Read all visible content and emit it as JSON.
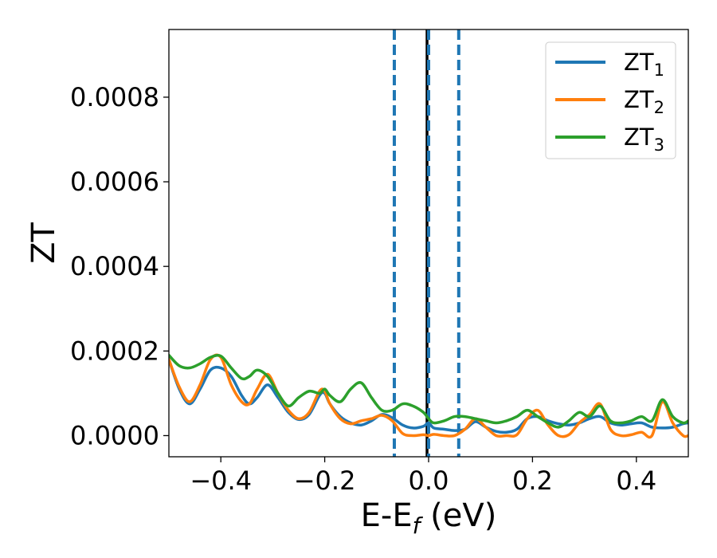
{
  "chart_data": {
    "type": "line",
    "xlabel": "E-E",
    "xlabel_sub": "f",
    "xlabel_unit": " (eV)",
    "ylabel": "ZT",
    "xlim": [
      -0.5,
      0.5
    ],
    "ylim": [
      -5e-05,
      0.00096
    ],
    "xticks": [
      -0.4,
      -0.2,
      0.0,
      0.2,
      0.4
    ],
    "xtick_labels": [
      "−0.4",
      "−0.2",
      "0.0",
      "0.2",
      "0.4"
    ],
    "yticks": [
      0.0,
      0.0002,
      0.0004,
      0.0006,
      0.0008
    ],
    "ytick_labels": [
      "0.0000",
      "0.0002",
      "0.0004",
      "0.0006",
      "0.0008"
    ],
    "grid": false,
    "legend_position": "top-right",
    "vlines": [
      {
        "x": -0.066,
        "style": "dashed",
        "color": "#1f77b4"
      },
      {
        "x": -0.003,
        "style": "solid",
        "color": "#000000"
      },
      {
        "x": 0.0,
        "style": "dashed",
        "color": "#1f77b4"
      },
      {
        "x": 0.058,
        "style": "dashed",
        "color": "#1f77b4"
      }
    ],
    "series": [
      {
        "name": "ZT",
        "sub": "1",
        "color": "#1f77b4",
        "x": [
          -0.5,
          -0.48,
          -0.46,
          -0.44,
          -0.42,
          -0.4,
          -0.38,
          -0.36,
          -0.345,
          -0.33,
          -0.31,
          -0.29,
          -0.27,
          -0.25,
          -0.23,
          -0.21,
          -0.2,
          -0.19,
          -0.17,
          -0.15,
          -0.13,
          -0.11,
          -0.09,
          -0.07,
          -0.05,
          -0.03,
          -0.01,
          0.0,
          0.01,
          0.03,
          0.05,
          0.07,
          0.09,
          0.11,
          0.13,
          0.15,
          0.17,
          0.19,
          0.21,
          0.23,
          0.25,
          0.27,
          0.29,
          0.31,
          0.33,
          0.35,
          0.37,
          0.39,
          0.41,
          0.43,
          0.45,
          0.47,
          0.49,
          0.5
        ],
        "y": [
          0.00018,
          0.00011,
          7.5e-05,
          0.00011,
          0.000155,
          0.00016,
          0.00014,
          9.5e-05,
          7.5e-05,
          9e-05,
          0.00012,
          9e-05,
          5.5e-05,
          3.8e-05,
          5e-05,
          9.5e-05,
          0.0001,
          7.5e-05,
          4.5e-05,
          3e-05,
          2.5e-05,
          3.5e-05,
          5e-05,
          4.2e-05,
          2.5e-05,
          1.8e-05,
          2.2e-05,
          3e-05,
          1.8e-05,
          1.5e-05,
          1.2e-05,
          1.5e-05,
          3.3e-05,
          2e-05,
          1e-05,
          8e-06,
          1.5e-05,
          4e-05,
          4.5e-05,
          3.5e-05,
          2.8e-05,
          2.5e-05,
          3e-05,
          4e-05,
          4.5e-05,
          3e-05,
          2.5e-05,
          2.8e-05,
          3e-05,
          2e-05,
          1.8e-05,
          2e-05,
          2.8e-05,
          3e-05
        ]
      },
      {
        "name": "ZT",
        "sub": "2",
        "color": "#ff7f0e",
        "x": [
          -0.5,
          -0.48,
          -0.46,
          -0.44,
          -0.42,
          -0.4,
          -0.38,
          -0.36,
          -0.345,
          -0.33,
          -0.31,
          -0.29,
          -0.27,
          -0.25,
          -0.23,
          -0.21,
          -0.2,
          -0.19,
          -0.17,
          -0.15,
          -0.13,
          -0.11,
          -0.09,
          -0.07,
          -0.05,
          -0.03,
          -0.01,
          0.0,
          0.01,
          0.03,
          0.05,
          0.07,
          0.09,
          0.11,
          0.13,
          0.15,
          0.17,
          0.19,
          0.21,
          0.23,
          0.25,
          0.27,
          0.29,
          0.31,
          0.33,
          0.35,
          0.37,
          0.39,
          0.41,
          0.43,
          0.45,
          0.47,
          0.49,
          0.5
        ],
        "y": [
          0.00018,
          0.000115,
          8e-05,
          0.00012,
          0.00018,
          0.000185,
          0.00012,
          8e-05,
          7.5e-05,
          0.00011,
          0.000145,
          0.0001,
          6e-05,
          4e-05,
          5.5e-05,
          0.000105,
          0.000105,
          7.5e-05,
          4e-05,
          2.8e-05,
          3.5e-05,
          4e-05,
          4.8e-05,
          3.5e-05,
          5e-06,
          0.0,
          2e-06,
          0.0,
          3e-06,
          0.0,
          0.0,
          1.5e-05,
          4e-05,
          2e-05,
          0.0,
          0.0,
          2e-06,
          4e-05,
          6e-05,
          2.5e-05,
          0.0,
          2e-06,
          3e-05,
          5e-05,
          7.5e-05,
          1.5e-05,
          0.0,
          2e-06,
          8e-06,
          0.0,
          8e-05,
          3e-05,
          0.0,
          0.0
        ]
      },
      {
        "name": "ZT",
        "sub": "3",
        "color": "#2ca02c",
        "x": [
          -0.5,
          -0.48,
          -0.46,
          -0.44,
          -0.42,
          -0.4,
          -0.38,
          -0.36,
          -0.345,
          -0.33,
          -0.31,
          -0.29,
          -0.27,
          -0.25,
          -0.23,
          -0.21,
          -0.2,
          -0.19,
          -0.17,
          -0.15,
          -0.13,
          -0.11,
          -0.09,
          -0.07,
          -0.05,
          -0.03,
          -0.01,
          0.0,
          0.01,
          0.03,
          0.05,
          0.07,
          0.09,
          0.11,
          0.13,
          0.15,
          0.17,
          0.19,
          0.21,
          0.23,
          0.25,
          0.27,
          0.29,
          0.31,
          0.33,
          0.35,
          0.37,
          0.39,
          0.41,
          0.43,
          0.45,
          0.47,
          0.49,
          0.5
        ],
        "y": [
          0.00019,
          0.000165,
          0.00016,
          0.00017,
          0.000185,
          0.000188,
          0.00016,
          0.000135,
          0.00014,
          0.000155,
          0.00014,
          0.0001,
          7e-05,
          9e-05,
          0.000105,
          0.0001,
          0.00011,
          9.5e-05,
          8e-05,
          0.00011,
          0.000125,
          9e-05,
          6e-05,
          6e-05,
          7.5e-05,
          7e-05,
          5.5e-05,
          4e-05,
          3e-05,
          3.5e-05,
          4.5e-05,
          4.5e-05,
          4e-05,
          3.5e-05,
          3e-05,
          3.5e-05,
          4.5e-05,
          6e-05,
          4.5e-05,
          3e-05,
          2e-05,
          3.5e-05,
          5.5e-05,
          4.5e-05,
          7e-05,
          3.5e-05,
          3e-05,
          3.5e-05,
          4.5e-05,
          3.5e-05,
          8.5e-05,
          4.5e-05,
          3e-05,
          3.5e-05
        ]
      }
    ]
  }
}
